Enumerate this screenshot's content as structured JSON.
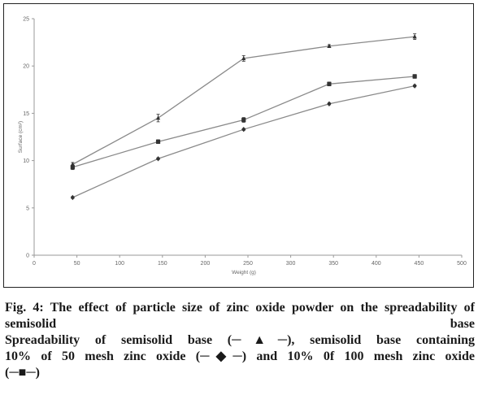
{
  "chart_data": {
    "type": "line",
    "xlabel": "Weight (g)",
    "ylabel": "Surface (cm²)",
    "xlim": [
      0,
      500
    ],
    "ylim": [
      0,
      25
    ],
    "xticks": [
      0,
      50,
      100,
      150,
      200,
      250,
      300,
      350,
      400,
      450,
      500
    ],
    "yticks": [
      0,
      5,
      10,
      15,
      20,
      25
    ],
    "grid": false,
    "legend": "none",
    "x": [
      45,
      145,
      245,
      345,
      445
    ],
    "series": [
      {
        "marker": "triangle",
        "values": [
          9.6,
          14.5,
          20.8,
          22.1,
          23.1
        ],
        "error": [
          0.2,
          0.4,
          0.3,
          0.15,
          0.3
        ]
      },
      {
        "marker": "square",
        "values": [
          9.3,
          12.0,
          14.3,
          18.1,
          18.9
        ],
        "error": [
          0.25,
          0.2,
          0.25,
          0.2,
          0.2
        ]
      },
      {
        "marker": "diamond",
        "values": [
          6.1,
          10.2,
          13.3,
          16.0,
          17.9
        ],
        "error": [
          0.1,
          0.1,
          0.1,
          0.1,
          0.1
        ]
      }
    ]
  },
  "caption": {
    "title": "Fig. 4: The effect of particle size of zinc oxide powder on the spreadability of semisolid base",
    "line1": "Spreadability of semisolid base (─▲─), semisolid base containing",
    "line2": "10% of 50 mesh zinc oxide (─◆─) and 10% 0f 100 mesh zinc oxide",
    "line3": "(─■─)"
  },
  "colors": {
    "line": "#8a8a8a",
    "marker": "#333333",
    "axis": "#9a9a9a",
    "text": "#1a1a1a"
  }
}
